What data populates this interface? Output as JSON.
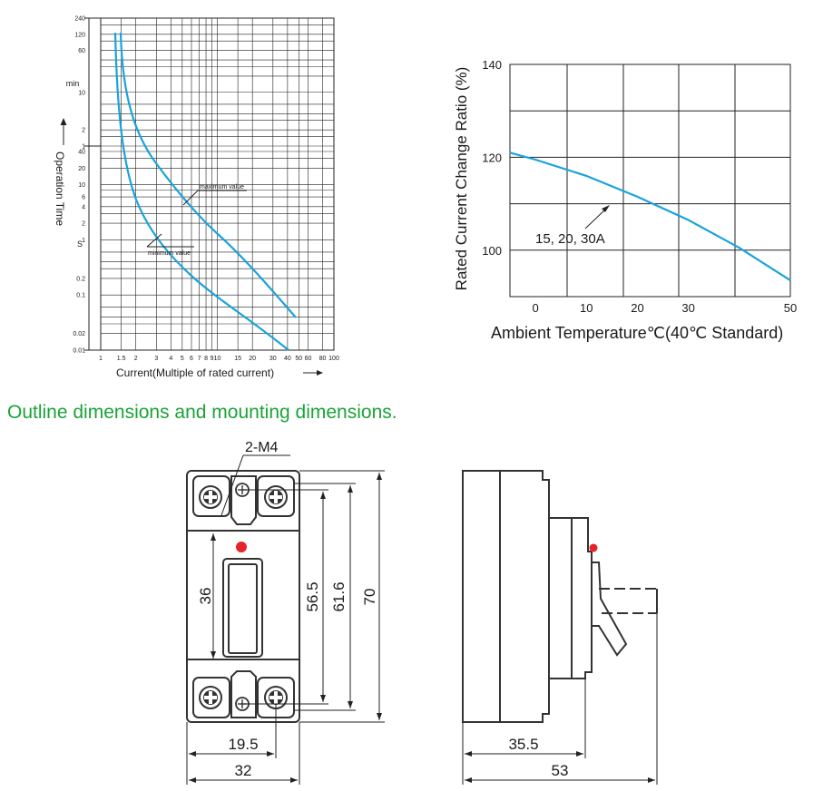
{
  "trip_chart": {
    "y_ticks_min": [
      "240",
      "120",
      "60",
      "10",
      "2",
      "1"
    ],
    "y_ticks_s": [
      "40",
      "20",
      "10",
      "6",
      "4",
      "2",
      "1",
      "0.2",
      "0.1",
      "0.02",
      "0.01"
    ],
    "y_unit_min": "min",
    "y_unit_s": "S",
    "y_label": "Operation Time",
    "x_ticks": [
      "1",
      "1.5",
      "2",
      "3",
      "4",
      "5",
      "6",
      "7",
      "8",
      "9",
      "10",
      "15",
      "20",
      "30",
      "40",
      "50",
      "60",
      "80",
      "100"
    ],
    "x_label": "Current(Multiple of rated current)",
    "annotation_max": "maximum value",
    "annotation_min": "minimum value",
    "curve_color": "#1aa3d9"
  },
  "chart_data": {
    "type": "line",
    "xlabel": "Ambient Temperature℃(40℃ Standard)",
    "ylabel": "Rated Current Change Ratio (%)",
    "x_ticks": [
      "0",
      "10",
      "20",
      "30",
      "50"
    ],
    "y_ticks": [
      "140",
      "120",
      "100"
    ],
    "xlim": [
      -5,
      50
    ],
    "ylim": [
      90,
      140
    ],
    "annotation": "15, 20, 30A",
    "series": [
      {
        "x": [
          -5,
          0,
          10,
          20,
          30,
          40,
          50
        ],
        "values": [
          121,
          119.5,
          116,
          111.5,
          106.5,
          100.5,
          93.5
        ]
      }
    ]
  },
  "section_heading": "Outline dimensions and mounting dimensions.",
  "front_view": {
    "screw_label": "2-M4",
    "dim_height_inner": "36",
    "dim_mount": "56.5",
    "dim_terminal": "61.6",
    "dim_height": "70",
    "dim_width_inner": "19.5",
    "dim_width": "32"
  },
  "side_view": {
    "dim_depth_body": "35.5",
    "dim_depth_total": "53"
  },
  "colors": {
    "heading": "#1aa337",
    "indicator": "#e8222a",
    "curve": "#1aa3d9"
  }
}
